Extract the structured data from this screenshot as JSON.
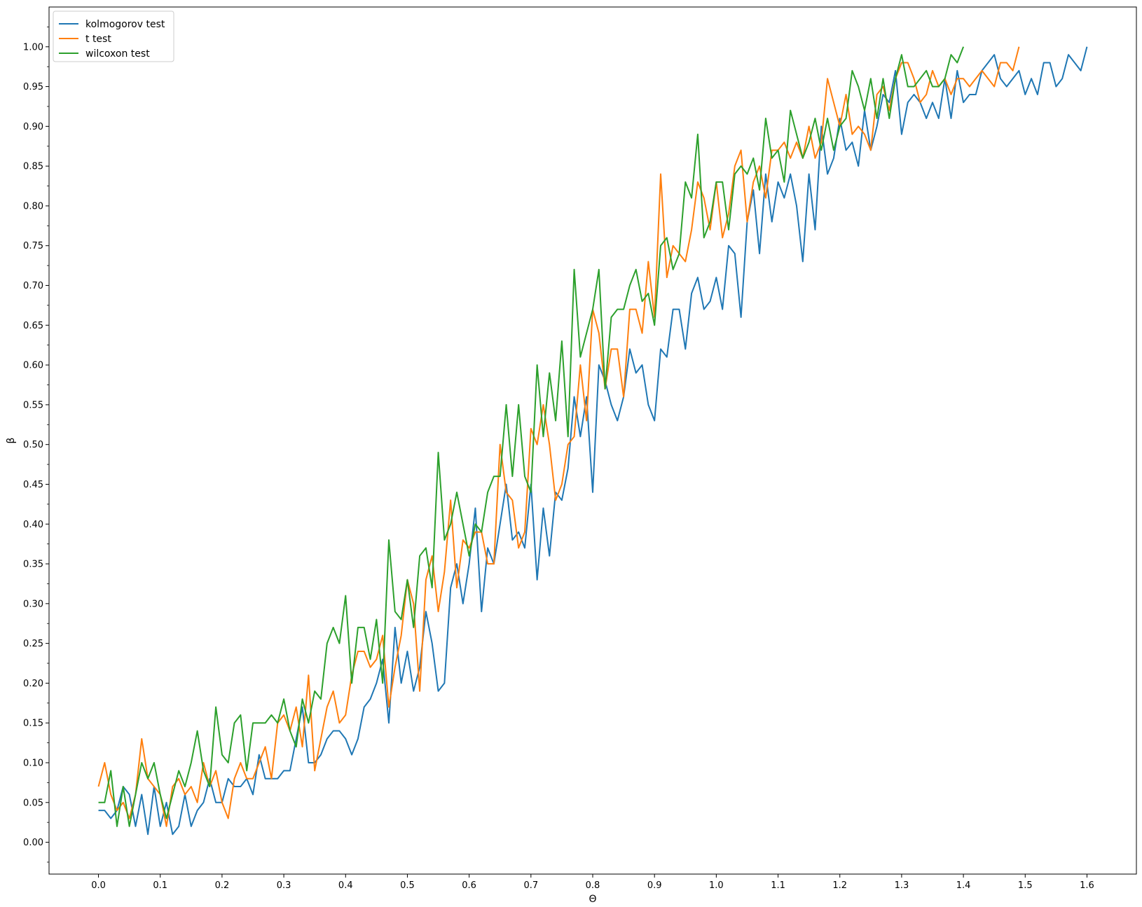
{
  "chart_data": {
    "type": "line",
    "title": "",
    "xlabel": "Θ",
    "ylabel": "β",
    "xlim": [
      -0.08,
      1.68
    ],
    "ylim": [
      -0.04,
      1.05
    ],
    "xticks": [
      0.0,
      0.1,
      0.2,
      0.3,
      0.4,
      0.5,
      0.6,
      0.7,
      0.8,
      0.9,
      1.0,
      1.1,
      1.2,
      1.3,
      1.4,
      1.5,
      1.6
    ],
    "xtick_labels": [
      "0.0",
      "0.1",
      "0.2",
      "0.3",
      "0.4",
      "0.5",
      "0.6",
      "0.7",
      "0.8",
      "0.9",
      "1.0",
      "1.1",
      "1.2",
      "1.3",
      "1.4",
      "1.5",
      "1.6"
    ],
    "yticks": [
      0.0,
      0.05,
      0.1,
      0.15,
      0.2,
      0.25,
      0.3,
      0.35,
      0.4,
      0.45,
      0.5,
      0.55,
      0.6,
      0.65,
      0.7,
      0.75,
      0.8,
      0.85,
      0.9,
      0.95,
      1.0
    ],
    "ytick_labels": [
      "0.00",
      "0.05",
      "0.10",
      "0.15",
      "0.20",
      "0.25",
      "0.30",
      "0.35",
      "0.40",
      "0.45",
      "0.50",
      "0.55",
      "0.60",
      "0.65",
      "0.70",
      "0.75",
      "0.80",
      "0.85",
      "0.90",
      "0.95",
      "1.00"
    ],
    "grid": false,
    "legend_position": "upper left",
    "x_step": 0.01,
    "series": [
      {
        "name": "kolmogorov test",
        "color": "#1f77b4",
        "values": [
          0.04,
          0.04,
          0.03,
          0.04,
          0.07,
          0.06,
          0.02,
          0.06,
          0.01,
          0.07,
          0.02,
          0.05,
          0.01,
          0.02,
          0.06,
          0.02,
          0.04,
          0.05,
          0.08,
          0.05,
          0.05,
          0.08,
          0.07,
          0.07,
          0.08,
          0.06,
          0.11,
          0.08,
          0.08,
          0.08,
          0.09,
          0.09,
          0.13,
          0.17,
          0.1,
          0.1,
          0.11,
          0.13,
          0.14,
          0.14,
          0.13,
          0.11,
          0.13,
          0.17,
          0.18,
          0.2,
          0.23,
          0.15,
          0.27,
          0.2,
          0.24,
          0.19,
          0.22,
          0.29,
          0.25,
          0.19,
          0.2,
          0.32,
          0.35,
          0.3,
          0.35,
          0.42,
          0.29,
          0.37,
          0.35,
          0.4,
          0.45,
          0.38,
          0.39,
          0.37,
          0.45,
          0.33,
          0.42,
          0.36,
          0.44,
          0.43,
          0.47,
          0.56,
          0.51,
          0.56,
          0.44,
          0.6,
          0.58,
          0.55,
          0.53,
          0.56,
          0.62,
          0.59,
          0.6,
          0.55,
          0.53,
          0.62,
          0.61,
          0.67,
          0.67,
          0.62,
          0.69,
          0.71,
          0.67,
          0.68,
          0.71,
          0.67,
          0.75,
          0.74,
          0.66,
          0.78,
          0.82,
          0.74,
          0.84,
          0.78,
          0.83,
          0.81,
          0.84,
          0.8,
          0.73,
          0.84,
          0.77,
          0.9,
          0.84,
          0.86,
          0.91,
          0.87,
          0.88,
          0.85,
          0.92,
          0.87,
          0.9,
          0.94,
          0.93,
          0.97,
          0.89,
          0.93,
          0.94,
          0.93,
          0.91,
          0.93,
          0.91,
          0.96,
          0.91,
          0.97,
          0.93,
          0.94,
          0.94,
          0.97,
          0.98,
          0.99,
          0.96,
          0.95,
          0.96,
          0.97,
          0.94,
          0.96,
          0.94,
          0.98,
          0.98,
          0.95,
          0.96,
          0.99,
          0.98,
          0.97,
          1.0
        ]
      },
      {
        "name": "t test",
        "color": "#ff7f0e",
        "values": [
          0.07,
          0.1,
          0.06,
          0.04,
          0.05,
          0.03,
          0.06,
          0.13,
          0.08,
          0.07,
          0.06,
          0.02,
          0.07,
          0.08,
          0.06,
          0.07,
          0.05,
          0.1,
          0.07,
          0.09,
          0.05,
          0.03,
          0.08,
          0.1,
          0.08,
          0.08,
          0.1,
          0.12,
          0.08,
          0.15,
          0.16,
          0.14,
          0.17,
          0.12,
          0.21,
          0.09,
          0.13,
          0.17,
          0.19,
          0.15,
          0.16,
          0.21,
          0.24,
          0.24,
          0.22,
          0.23,
          0.26,
          0.17,
          0.22,
          0.26,
          0.33,
          0.3,
          0.19,
          0.33,
          0.36,
          0.29,
          0.34,
          0.43,
          0.32,
          0.38,
          0.37,
          0.39,
          0.39,
          0.35,
          0.35,
          0.5,
          0.44,
          0.43,
          0.37,
          0.39,
          0.52,
          0.5,
          0.55,
          0.5,
          0.43,
          0.45,
          0.5,
          0.51,
          0.6,
          0.53,
          0.67,
          0.64,
          0.57,
          0.62,
          0.62,
          0.56,
          0.67,
          0.67,
          0.64,
          0.73,
          0.66,
          0.84,
          0.71,
          0.75,
          0.74,
          0.73,
          0.77,
          0.83,
          0.81,
          0.77,
          0.83,
          0.76,
          0.79,
          0.85,
          0.87,
          0.78,
          0.83,
          0.85,
          0.81,
          0.87,
          0.87,
          0.88,
          0.86,
          0.88,
          0.86,
          0.9,
          0.86,
          0.88,
          0.96,
          0.93,
          0.9,
          0.94,
          0.89,
          0.9,
          0.89,
          0.87,
          0.94,
          0.95,
          0.92,
          0.96,
          0.98,
          0.98,
          0.96,
          0.93,
          0.94,
          0.97,
          0.95,
          0.96,
          0.94,
          0.96,
          0.96,
          0.95,
          0.96,
          0.97,
          0.96,
          0.95,
          0.98,
          0.98,
          0.97,
          1.0
        ]
      },
      {
        "name": "wilcoxon test",
        "color": "#2ca02c",
        "values": [
          0.05,
          0.05,
          0.09,
          0.02,
          0.07,
          0.02,
          0.06,
          0.1,
          0.08,
          0.1,
          0.06,
          0.03,
          0.06,
          0.09,
          0.07,
          0.1,
          0.14,
          0.09,
          0.07,
          0.17,
          0.11,
          0.1,
          0.15,
          0.16,
          0.09,
          0.15,
          0.15,
          0.15,
          0.16,
          0.15,
          0.18,
          0.14,
          0.12,
          0.18,
          0.15,
          0.19,
          0.18,
          0.25,
          0.27,
          0.25,
          0.31,
          0.2,
          0.27,
          0.27,
          0.23,
          0.28,
          0.2,
          0.38,
          0.29,
          0.28,
          0.33,
          0.27,
          0.36,
          0.37,
          0.32,
          0.49,
          0.38,
          0.4,
          0.44,
          0.4,
          0.36,
          0.4,
          0.39,
          0.44,
          0.46,
          0.46,
          0.55,
          0.46,
          0.55,
          0.46,
          0.44,
          0.6,
          0.51,
          0.59,
          0.53,
          0.63,
          0.51,
          0.72,
          0.61,
          0.64,
          0.67,
          0.72,
          0.57,
          0.66,
          0.67,
          0.67,
          0.7,
          0.72,
          0.68,
          0.69,
          0.65,
          0.75,
          0.76,
          0.72,
          0.74,
          0.83,
          0.81,
          0.89,
          0.76,
          0.78,
          0.83,
          0.83,
          0.77,
          0.84,
          0.85,
          0.84,
          0.86,
          0.82,
          0.91,
          0.86,
          0.87,
          0.83,
          0.92,
          0.89,
          0.86,
          0.88,
          0.91,
          0.87,
          0.91,
          0.87,
          0.9,
          0.91,
          0.97,
          0.95,
          0.92,
          0.96,
          0.91,
          0.96,
          0.91,
          0.96,
          0.99,
          0.95,
          0.95,
          0.96,
          0.97,
          0.95,
          0.95,
          0.96,
          0.99,
          0.98,
          1.0
        ]
      }
    ]
  }
}
